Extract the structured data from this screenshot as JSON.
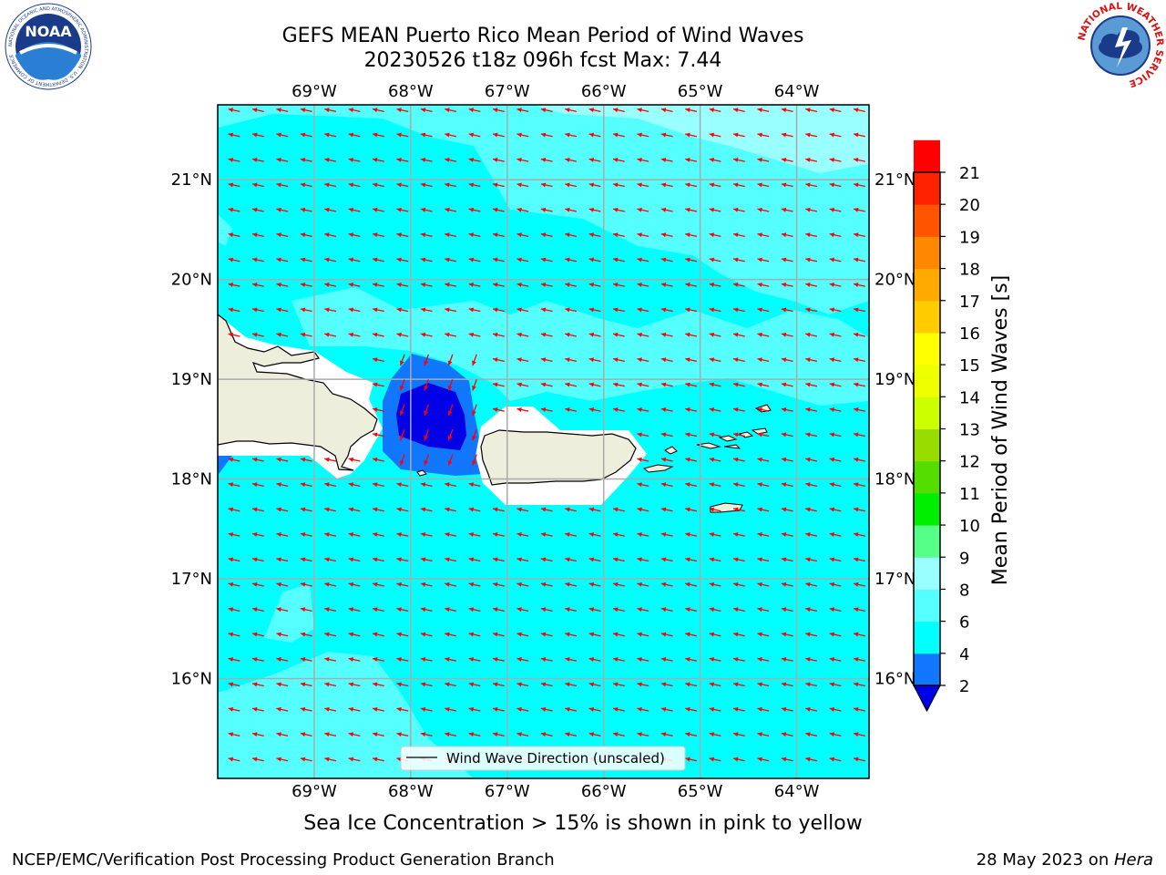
{
  "header": {
    "title_line1": "GEFS MEAN Puerto Rico Mean Period of Wind Waves",
    "title_line2": "20230526 t18z 096h fcst   Max: 7.44"
  },
  "map": {
    "lon_labels": [
      "69°W",
      "68°W",
      "67°W",
      "66°W",
      "65°W",
      "64°W"
    ],
    "lat_labels": [
      "21°N",
      "20°N",
      "19°N",
      "18°N",
      "17°N",
      "16°N"
    ],
    "lon_values": [
      -69,
      -68,
      -67,
      -66,
      -65,
      -64
    ],
    "lat_values": [
      21,
      20,
      19,
      18,
      17,
      16
    ],
    "lon_range": [
      -70,
      -63.25
    ],
    "lat_range": [
      15,
      21.75
    ],
    "arrow_color": "#ff0000",
    "legend_label": "Wind Wave Direction (unscaled)",
    "colors": {
      "ocean_main": "#00ffff",
      "ocean_light": "#55ffff",
      "ocean_lighter": "#99ffff",
      "blue_mid": "#1177ff",
      "blue_dark": "#0000e6",
      "land": "#eeeedd",
      "no_data": "#ffffff"
    }
  },
  "colorbar": {
    "label": "Mean Period of Wind Waves [s]",
    "ticks": [
      "2",
      "4",
      "6",
      "8",
      "9",
      "10",
      "11",
      "12",
      "13",
      "14",
      "15",
      "16",
      "17",
      "18",
      "19",
      "20",
      "21"
    ],
    "segment_colors": [
      "#1177ff",
      "#00ffff",
      "#55ffff",
      "#99ffff",
      "#55ff88",
      "#00ee00",
      "#55dd00",
      "#99dd00",
      "#ccff00",
      "#eeff00",
      "#ffff00",
      "#ffcc00",
      "#ffaa00",
      "#ff8800",
      "#ff5500",
      "#ff2200",
      "#ff0000"
    ],
    "under_color": "#0000e6"
  },
  "caption": "Sea Ice Concentration > 15% is shown in pink to yellow",
  "footer": {
    "left": "NCEP/EMC/Verification Post Processing Product Generation Branch",
    "right_date": "28 May 2023 on ",
    "right_host": "Hera"
  },
  "logos": {
    "noaa_text": "NOAA",
    "noaa_ring_text": "NATIONAL OCEANIC AND ATMOSPHERIC ADMINISTRATION · U.S. DEPARTMENT OF COMMERCE",
    "nws_ring_text": "NATIONAL WEATHER SERVICE"
  }
}
